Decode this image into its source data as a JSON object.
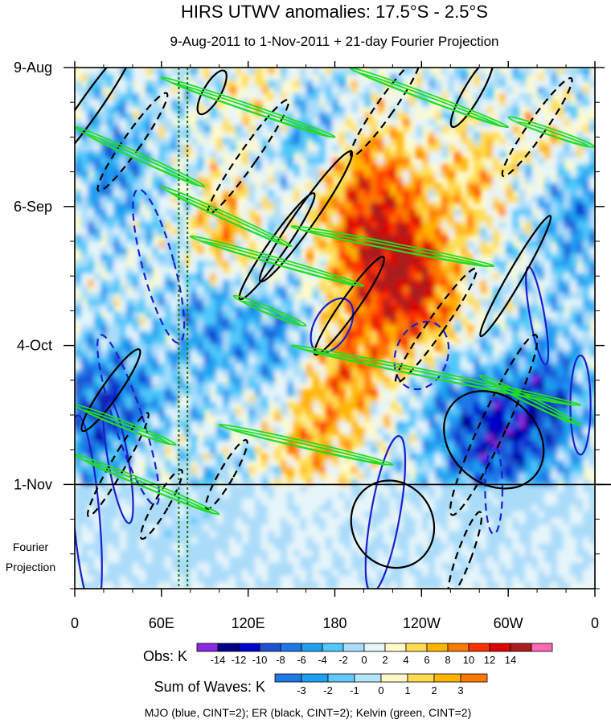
{
  "chart_data": {
    "type": "heatmap",
    "title": "HIRS UTWV anomalies: 17.5°S - 2.5°S",
    "subtitle": "9-Aug-2011 to 1-Nov-2011 + 21-day Fourier Projection",
    "x_ticks": [
      {
        "label": "0",
        "lon": 0
      },
      {
        "label": "60E",
        "lon": 60
      },
      {
        "label": "120E",
        "lon": 120
      },
      {
        "label": "180",
        "lon": 180
      },
      {
        "label": "120W",
        "lon": 240
      },
      {
        "label": "60W",
        "lon": 300
      },
      {
        "label": "0",
        "lon": 360
      }
    ],
    "x_range": [
      0,
      360
    ],
    "y_ticks": [
      {
        "label": "9-Aug",
        "day": 0
      },
      {
        "label": "6-Sep",
        "day": 28
      },
      {
        "label": "4-Oct",
        "day": 56
      },
      {
        "label": "1-Nov",
        "day": 84
      }
    ],
    "y_range_days": [
      0,
      105
    ],
    "projection_label": [
      "Fourier",
      "Projection"
    ],
    "reference_lines": {
      "obs_end_day": 84,
      "green_dotted_lons": [
        72,
        78
      ]
    },
    "obs_colorbar": {
      "label": "Obs: K",
      "levels": [
        -14,
        -12,
        -10,
        -8,
        -6,
        -4,
        -2,
        0,
        2,
        4,
        6,
        8,
        10,
        12,
        14
      ],
      "colors": [
        "#8a2be2",
        "#00008b",
        "#0000cd",
        "#1e50d2",
        "#1e78e6",
        "#1ea0f0",
        "#50c8fa",
        "#aadcfa",
        "#e6f5fa",
        "#fffac8",
        "#ffdc50",
        "#ffb400",
        "#ff7800",
        "#ff3200",
        "#dc0000",
        "#aa1e1e",
        "#ff69b4"
      ]
    },
    "waves_colorbar": {
      "label": "Sum of Waves: K",
      "levels": [
        -3,
        -2,
        -1,
        0,
        1,
        2,
        3
      ],
      "colors": [
        "#1e78e6",
        "#1ea0f0",
        "#64c8fa",
        "#b4e6fa",
        "#fffac8",
        "#ffdc50",
        "#ffb400",
        "#ff7800"
      ]
    },
    "contours": {
      "mjo": {
        "name": "MJO",
        "color": "#1e1ecc",
        "cint": 2,
        "features": [
          {
            "lon": 37,
            "day": 71,
            "rx": 10,
            "ry": 18,
            "angle": -18,
            "sign": "neg"
          },
          {
            "lon": 8,
            "day": 90,
            "rx": 9,
            "ry": 20,
            "angle": -5,
            "sign": "pos"
          },
          {
            "lon": 30,
            "day": 79,
            "rx": 7,
            "ry": 13,
            "angle": -10,
            "sign": "pos"
          },
          {
            "lon": 58,
            "day": 40,
            "rx": 11,
            "ry": 16,
            "angle": -15,
            "sign": "neg"
          },
          {
            "lon": 240,
            "day": 58,
            "rx": 18,
            "ry": 7,
            "angle": 20,
            "sign": "neg"
          },
          {
            "lon": 215,
            "day": 90,
            "rx": 10,
            "ry": 16,
            "angle": 10,
            "sign": "pos"
          },
          {
            "lon": 350,
            "day": 68,
            "rx": 7,
            "ry": 10,
            "angle": 0,
            "sign": "pos"
          },
          {
            "lon": 178,
            "day": 52,
            "rx": 12,
            "ry": 6,
            "angle": 30,
            "sign": "pos"
          },
          {
            "lon": 290,
            "day": 85,
            "rx": 6,
            "ry": 9,
            "angle": 0,
            "sign": "neg"
          },
          {
            "lon": 320,
            "day": 50,
            "rx": 5,
            "ry": 10,
            "angle": -10,
            "sign": "pos"
          }
        ]
      },
      "er": {
        "name": "ER",
        "color": "#000000",
        "cint": 2,
        "features": [
          {
            "lon": 10,
            "day": 8,
            "rx": 7,
            "ry": 16,
            "angle": 35,
            "sign": "pos"
          },
          {
            "lon": 40,
            "day": 15,
            "rx": 6,
            "ry": 12,
            "angle": 35,
            "sign": "neg"
          },
          {
            "lon": 95,
            "day": 5,
            "rx": 6,
            "ry": 5,
            "angle": 30,
            "sign": "pos"
          },
          {
            "lon": 120,
            "day": 18,
            "rx": 6,
            "ry": 14,
            "angle": 35,
            "sign": "neg"
          },
          {
            "lon": 160,
            "day": 30,
            "rx": 7,
            "ry": 16,
            "angle": 35,
            "sign": "pos"
          },
          {
            "lon": 215,
            "day": 8,
            "rx": 6,
            "ry": 12,
            "angle": 35,
            "sign": "neg"
          },
          {
            "lon": 275,
            "day": 5,
            "rx": 6,
            "ry": 8,
            "angle": 30,
            "sign": "pos"
          },
          {
            "lon": 320,
            "day": 12,
            "rx": 6,
            "ry": 12,
            "angle": 35,
            "sign": "neg"
          },
          {
            "lon": 190,
            "day": 48,
            "rx": 6,
            "ry": 12,
            "angle": 35,
            "sign": "pos"
          },
          {
            "lon": 250,
            "day": 52,
            "rx": 6,
            "ry": 14,
            "angle": 35,
            "sign": "neg"
          },
          {
            "lon": 290,
            "day": 75,
            "rx": 30,
            "ry": 11,
            "angle": -48,
            "sign": "pos"
          },
          {
            "lon": 220,
            "day": 92,
            "rx": 28,
            "ry": 9,
            "angle": -30,
            "sign": "pos"
          },
          {
            "lon": 290,
            "day": 72,
            "rx": 9,
            "ry": 20,
            "angle": 25,
            "sign": "neg"
          },
          {
            "lon": 270,
            "day": 98,
            "rx": 5,
            "ry": 9,
            "angle": 20,
            "sign": "neg"
          },
          {
            "lon": 30,
            "day": 80,
            "rx": 5,
            "ry": 12,
            "angle": 30,
            "sign": "neg"
          },
          {
            "lon": 60,
            "day": 88,
            "rx": 5,
            "ry": 8,
            "angle": 30,
            "sign": "neg"
          },
          {
            "lon": 25,
            "day": 65,
            "rx": 6,
            "ry": 10,
            "angle": 35,
            "sign": "pos"
          },
          {
            "lon": 105,
            "day": 82,
            "rx": 5,
            "ry": 8,
            "angle": 30,
            "sign": "neg"
          },
          {
            "lon": 140,
            "day": 36,
            "rx": 6,
            "ry": 13,
            "angle": 35,
            "sign": "pos"
          },
          {
            "lon": 305,
            "day": 42,
            "rx": 5,
            "ry": 14,
            "angle": 30,
            "sign": "pos"
          }
        ]
      },
      "kelvin": {
        "name": "Kelvin",
        "color": "#22dd22",
        "cint": 2,
        "features": [
          {
            "lon0": 60,
            "day0": 2,
            "lon1": 180,
            "day1": 14
          },
          {
            "lon0": 190,
            "day0": 0,
            "lon1": 300,
            "day1": 12
          },
          {
            "lon0": 0,
            "day0": 12,
            "lon1": 90,
            "day1": 24
          },
          {
            "lon0": 60,
            "day0": 24,
            "lon1": 150,
            "day1": 36
          },
          {
            "lon0": 80,
            "day0": 34,
            "lon1": 200,
            "day1": 44
          },
          {
            "lon0": 150,
            "day0": 32,
            "lon1": 290,
            "day1": 40
          },
          {
            "lon0": 110,
            "day0": 46,
            "lon1": 160,
            "day1": 52
          },
          {
            "lon0": 150,
            "day0": 56,
            "lon1": 350,
            "day1": 68
          },
          {
            "lon0": 0,
            "day0": 68,
            "lon1": 70,
            "day1": 76
          },
          {
            "lon0": 100,
            "day0": 72,
            "lon1": 220,
            "day1": 80
          },
          {
            "lon0": 0,
            "day0": 78,
            "lon1": 100,
            "day1": 90
          },
          {
            "lon0": 280,
            "day0": 62,
            "lon1": 350,
            "day1": 72
          },
          {
            "lon0": 300,
            "day0": 10,
            "lon1": 360,
            "day1": 16
          }
        ]
      }
    },
    "footer": "MJO (blue, CINT=2); ER (black, CINT=2); Kelvin (green, CINT=2)"
  }
}
